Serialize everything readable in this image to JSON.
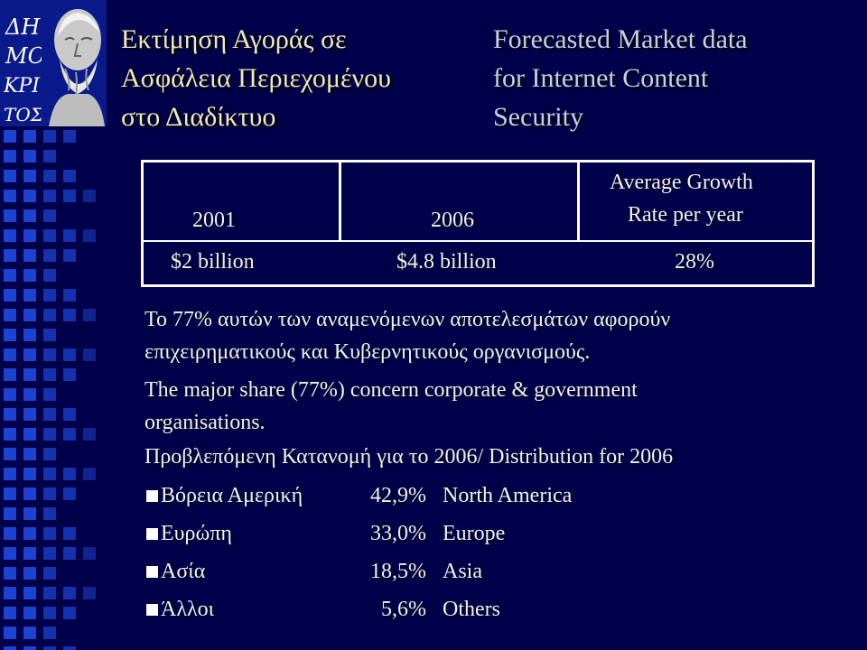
{
  "logo": {
    "letters": [
      "ΔΗ",
      "ΜΟ",
      "ΚΡΙ",
      "ΤΟΣ"
    ],
    "icon": "democritus-bust-logo"
  },
  "title": {
    "greek_lines": [
      "Εκτίμηση Αγοράς σε",
      "Ασφάλεια Περιεχομένου",
      "στο Διαδίκτυο"
    ],
    "english_lines": [
      "Forecasted Market data",
      "for Internet Content",
      "Security"
    ]
  },
  "table": {
    "headers": [
      "2001",
      "2006"
    ],
    "growth_header_lines": [
      "Average Growth",
      "Rate per year"
    ],
    "values": [
      "$2 billion",
      "$4.8 billion",
      "28%"
    ]
  },
  "body": {
    "greek_lines": [
      "Το 77% αυτών των αναμενόμενων αποτελεσμάτων αφορούν",
      "επιχειρηματικούς και Κυβερνητικούς οργανισμούς."
    ],
    "english_lines": [
      "The major share (77%) concern corporate & government",
      "organisations."
    ]
  },
  "distribution": {
    "heading": "Προβλεπόμενη Κατανομή για το 2006/ Distribution for 2006",
    "rows": [
      {
        "label": "Βόρεια Αμερική",
        "value": "42,9%",
        "english": "North America"
      },
      {
        "label": "Ευρώπη",
        "value": "33,0%",
        "english": "Europe"
      },
      {
        "label": "Ασία",
        "value": "18,5%",
        "english": "Asia"
      },
      {
        "label": "Άλλοι",
        "value": "5,6%",
        "english": "Others"
      }
    ]
  },
  "colors": {
    "background": "#00004a",
    "title_left": "#f0e8b6",
    "title_right": "#c8cee0",
    "strip_squares": "#1e46d8"
  }
}
